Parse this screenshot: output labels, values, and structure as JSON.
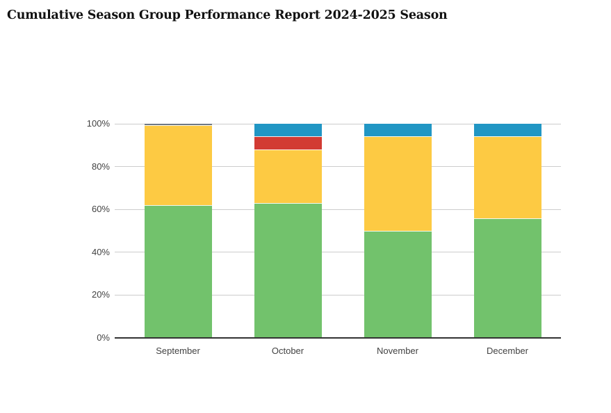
{
  "header": {
    "title": "Cumulative Season Group Performance Report 2024-2025 Season"
  },
  "chart_data": {
    "type": "bar",
    "variant": "stacked-percentage",
    "title": "Cumulative Season Group Performance Report 2024-2025 Season",
    "categories": [
      "September",
      "October",
      "November",
      "December"
    ],
    "series": [
      {
        "name": "green-segment",
        "color": "#72c26c",
        "values": [
          62,
          63,
          50,
          56
        ]
      },
      {
        "name": "yellow-segment",
        "color": "#fdca43",
        "values": [
          37.4,
          25,
          44,
          38
        ]
      },
      {
        "name": "red-segment",
        "color": "#d23b33",
        "values": [
          0,
          6,
          0,
          0
        ]
      },
      {
        "name": "blue-segment",
        "color": "#2196c4",
        "values": [
          0,
          6,
          6,
          6
        ]
      },
      {
        "name": "gray-segment",
        "color": "#6e7884",
        "values": [
          0.6,
          0,
          0,
          0
        ]
      }
    ],
    "xlabel": "",
    "ylabel": "",
    "ylim": [
      0,
      100
    ],
    "y_ticks": [
      0,
      20,
      40,
      60,
      80,
      100
    ],
    "y_tick_labels": [
      "0%",
      "20%",
      "40%",
      "60%",
      "80%",
      "100%"
    ],
    "grid": true,
    "legend_position": "none",
    "colors": {
      "background": "#ffffff",
      "gridline": "#cccccc",
      "axis_line": "#333333",
      "tick_text": "#424242",
      "segment_separator": "rgba(255,255,255,0.9)"
    }
  }
}
